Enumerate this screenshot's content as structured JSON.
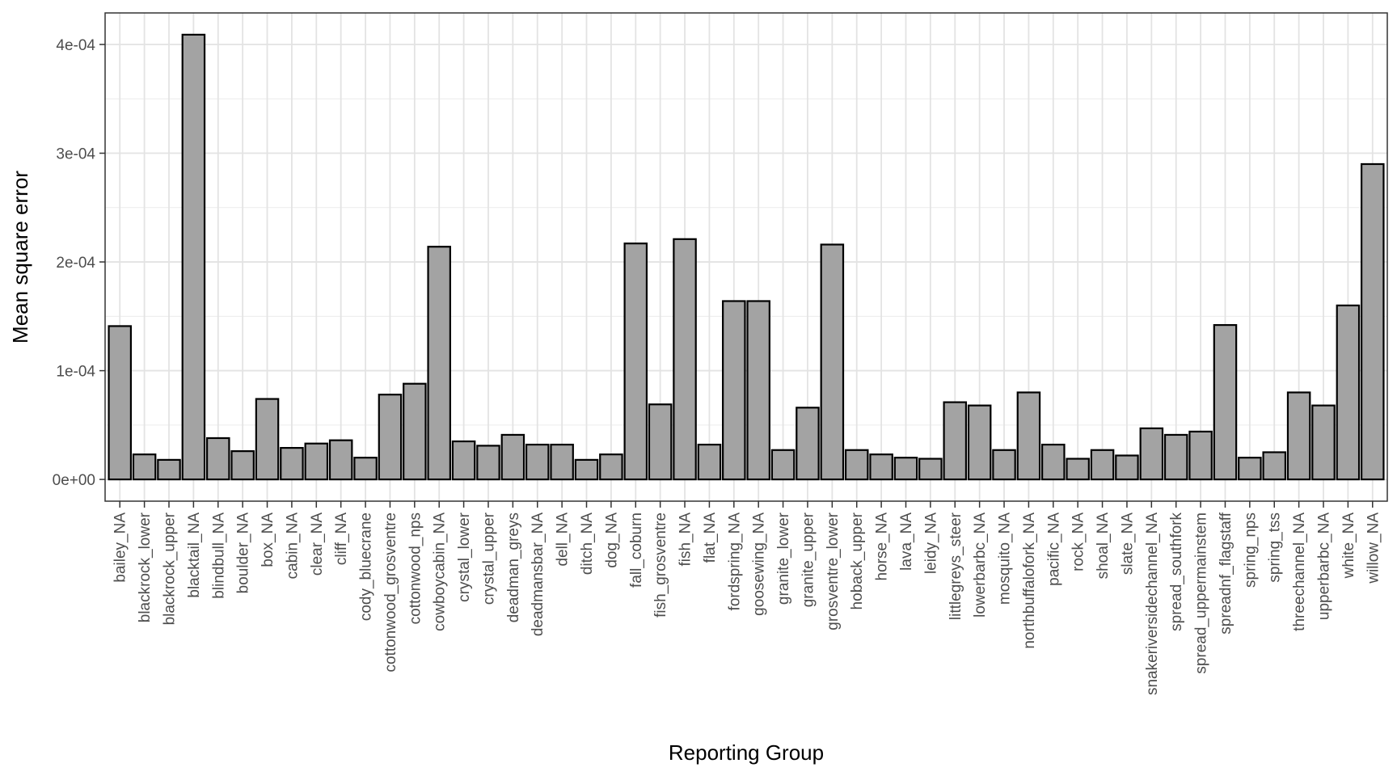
{
  "chart_data": {
    "type": "bar",
    "xlabel": "Reporting Group",
    "ylabel": "Mean square error",
    "ylim": [
      -2e-05,
      0.000429
    ],
    "yticks": [
      0,
      0.0001,
      0.0002,
      0.0003,
      0.0004
    ],
    "ytick_labels": [
      "0e+00",
      "1e-04",
      "2e-04",
      "3e-04",
      "4e-04"
    ],
    "grid": true,
    "bar_fill": "#a3a3a3",
    "bar_edge": "#000000",
    "categories": [
      "bailey_NA",
      "blackrock_lower",
      "blackrock_upper",
      "blacktail_NA",
      "blindbull_NA",
      "boulder_NA",
      "box_NA",
      "cabin_NA",
      "clear_NA",
      "cliff_NA",
      "cody_bluecrane",
      "cottonwood_grosventre",
      "cottonwood_nps",
      "cowboycabin_NA",
      "crystal_lower",
      "crystal_upper",
      "deadman_greys",
      "deadmansbar_NA",
      "dell_NA",
      "ditch_NA",
      "dog_NA",
      "fall_coburn",
      "fish_grosventre",
      "fish_NA",
      "flat_NA",
      "fordspring_NA",
      "goosewing_NA",
      "granite_lower",
      "granite_upper",
      "grosventre_lower",
      "hoback_upper",
      "horse_NA",
      "lava_NA",
      "leidy_NA",
      "littlegreys_steer",
      "lowerbarbc_NA",
      "mosquito_NA",
      "northbuffalofork_NA",
      "pacific_NA",
      "rock_NA",
      "shoal_NA",
      "slate_NA",
      "snakeriversidechannel_NA",
      "spread_southfork",
      "spread_uppermainstem",
      "spreadnf_flagstaff",
      "spring_nps",
      "spring_tss",
      "threechannel_NA",
      "upperbarbc_NA",
      "white_NA",
      "willow_NA"
    ],
    "values": [
      0.000141,
      2.3e-05,
      1.8e-05,
      0.000409,
      3.8e-05,
      2.6e-05,
      7.4e-05,
      2.9e-05,
      3.3e-05,
      3.6e-05,
      2e-05,
      7.8e-05,
      8.8e-05,
      0.000214,
      3.5e-05,
      3.1e-05,
      4.1e-05,
      3.2e-05,
      3.2e-05,
      1.8e-05,
      2.3e-05,
      0.000217,
      6.9e-05,
      0.000221,
      3.2e-05,
      0.000164,
      0.000164,
      2.7e-05,
      6.6e-05,
      0.000216,
      2.7e-05,
      2.3e-05,
      2e-05,
      1.9e-05,
      7.1e-05,
      6.8e-05,
      2.7e-05,
      8e-05,
      3.2e-05,
      1.9e-05,
      2.7e-05,
      2.2e-05,
      4.7e-05,
      4.1e-05,
      4.4e-05,
      0.000142,
      2e-05,
      2.5e-05,
      8e-05,
      6.8e-05,
      0.00016,
      0.00029
    ]
  }
}
